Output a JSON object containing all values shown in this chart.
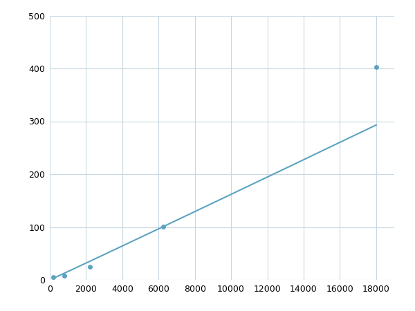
{
  "x": [
    200,
    800,
    2200,
    6250,
    18000
  ],
  "y": [
    5,
    8,
    25,
    101,
    403
  ],
  "line_color": "#5ba3c0",
  "marker_color": "#5ba3c0",
  "marker_size": 5,
  "xlim": [
    0,
    19000
  ],
  "ylim": [
    0,
    500
  ],
  "xticks": [
    0,
    2000,
    4000,
    6000,
    8000,
    10000,
    12000,
    14000,
    16000,
    18000
  ],
  "yticks": [
    0,
    100,
    200,
    300,
    400,
    500
  ],
  "grid_color": "#c8d8e0",
  "background_color": "#ffffff",
  "linewidth": 1.5,
  "figsize": [
    6.0,
    4.5
  ],
  "dpi": 100
}
